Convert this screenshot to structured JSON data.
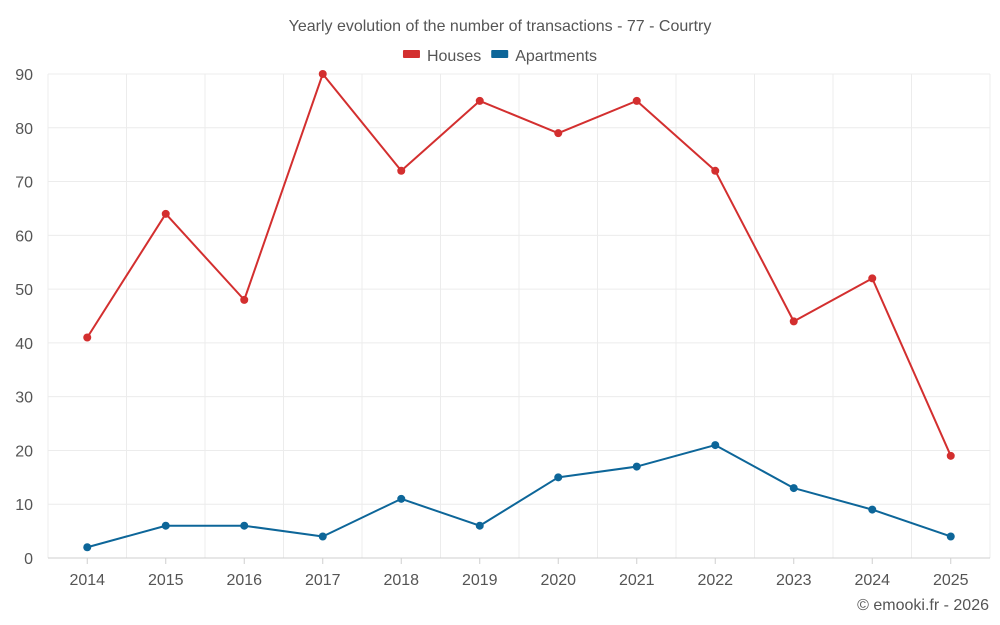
{
  "chart_data": {
    "type": "line",
    "title": "Yearly evolution of the number of transactions - 77 - Courtry",
    "categories": [
      "2014",
      "2015",
      "2016",
      "2017",
      "2018",
      "2019",
      "2020",
      "2021",
      "2022",
      "2023",
      "2024",
      "2025"
    ],
    "series": [
      {
        "name": "Houses",
        "color": "#d32f2f",
        "values": [
          41,
          64,
          48,
          90,
          72,
          85,
          79,
          85,
          72,
          44,
          52,
          19
        ]
      },
      {
        "name": "Apartments",
        "color": "#0d6699",
        "values": [
          2,
          6,
          6,
          4,
          11,
          6,
          15,
          17,
          21,
          13,
          9,
          4
        ]
      }
    ],
    "ylim": [
      0,
      90
    ],
    "yticks": [
      0,
      10,
      20,
      30,
      40,
      50,
      60,
      70,
      80,
      90
    ],
    "legend_position": "top-center",
    "grid": true,
    "credit": "© emooki.fr - 2026"
  }
}
